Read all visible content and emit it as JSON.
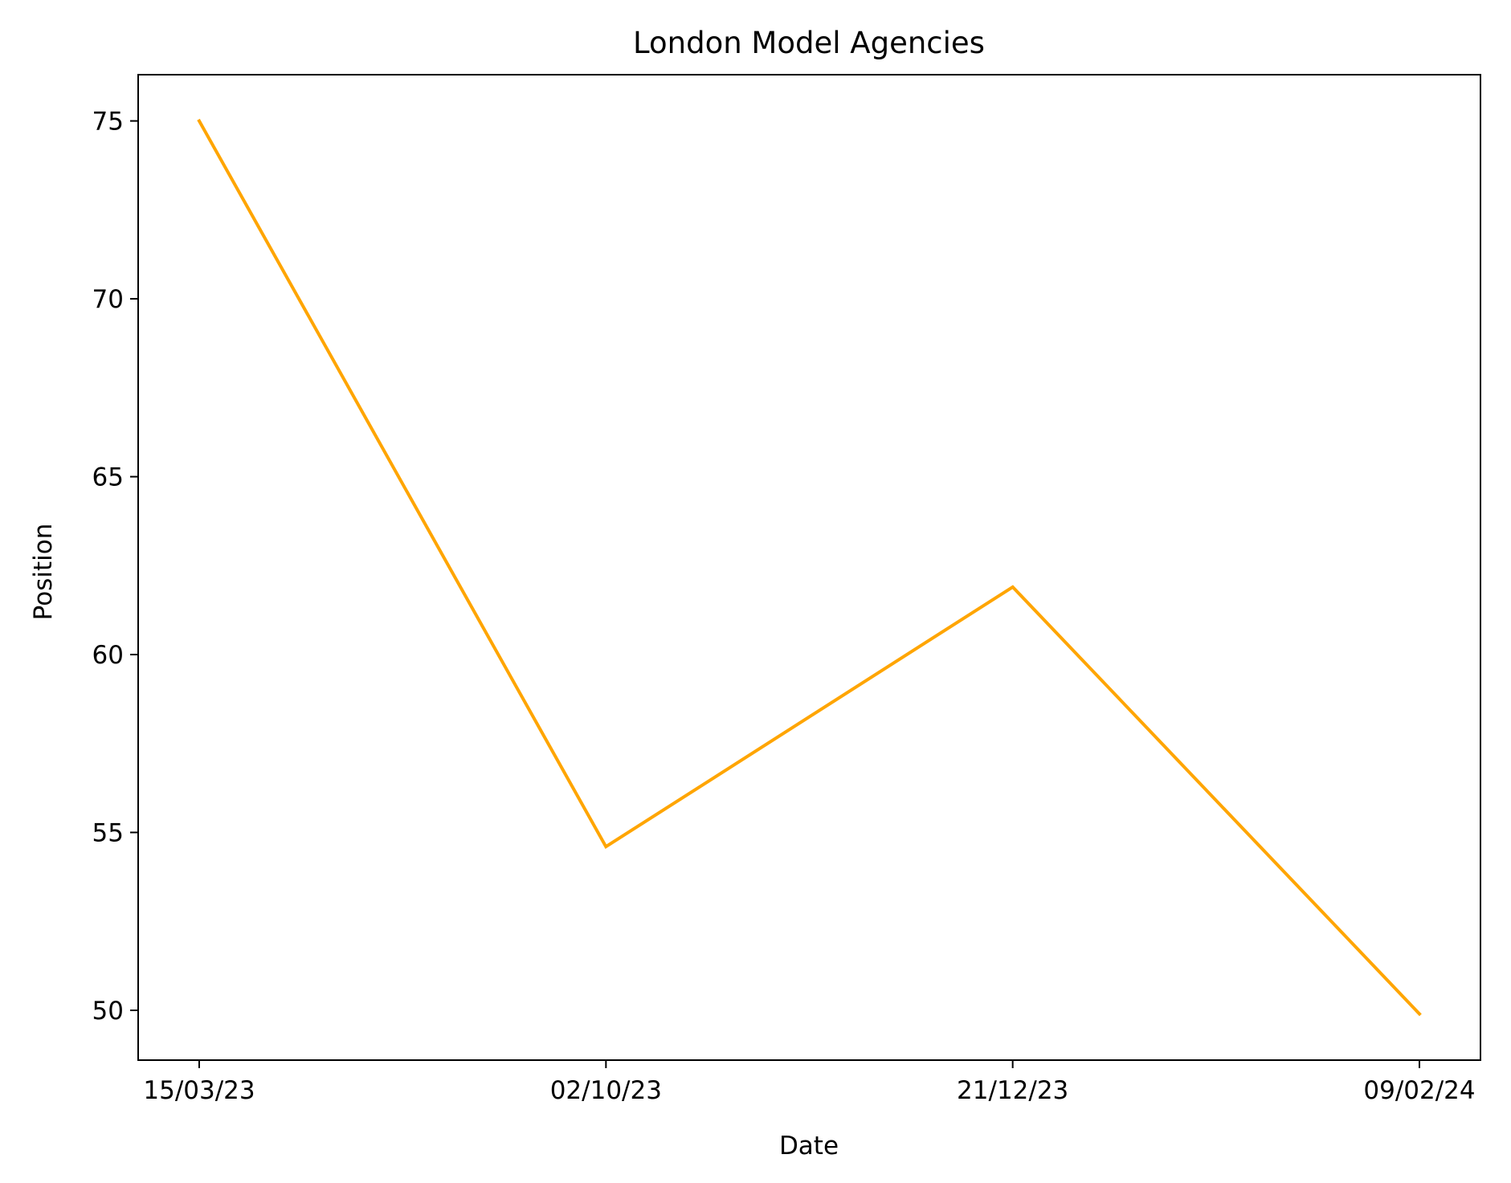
{
  "chart_data": {
    "type": "line",
    "title": "London Model Agencies",
    "xlabel": "Date",
    "ylabel": "Position",
    "categories": [
      "15/03/23",
      "02/10/23",
      "21/12/23",
      "09/02/24"
    ],
    "series": [
      {
        "values": [
          75.0,
          54.6,
          61.9,
          49.9
        ],
        "color": "#ffa500"
      }
    ],
    "ylim": [
      48.6,
      76.3
    ],
    "yticks": [
      50,
      55,
      60,
      65,
      70,
      75
    ],
    "grid": false,
    "legend": "none"
  }
}
